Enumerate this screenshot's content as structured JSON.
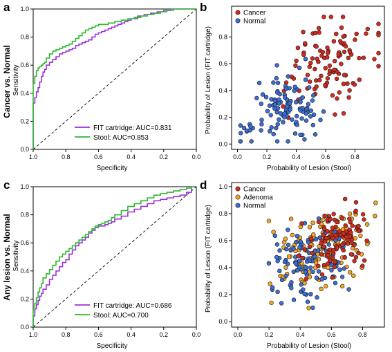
{
  "colors": {
    "fit_curve": "#9b30d9",
    "stool_curve": "#2db82d",
    "cancer": "#d42a1e",
    "adenoma": "#f5a623",
    "normal": "#3b6fd6",
    "point_edge": "#1a1a1a"
  },
  "chart_data": [
    {
      "panel_label": "a",
      "type": "line",
      "side_title": "Cancer vs. Normal",
      "xlabel": "Specificity",
      "ylabel": "Sensitivity",
      "xlim": [
        1.0,
        0.0
      ],
      "ylim": [
        0.0,
        1.0
      ],
      "x_reversed": true,
      "xticks": [
        "1.0",
        "0.8",
        "0.6",
        "0.4",
        "0.2",
        "0.0"
      ],
      "yticks": [
        "0.0",
        "0.2",
        "0.4",
        "0.6",
        "0.8",
        "1.0"
      ],
      "reference_line": "diagonal dashed",
      "legend_position": "bottom-right",
      "series": [
        {
          "name": "FIT cartridge: AUC=0.831",
          "color_key": "fit_curve",
          "x": [
            1.0,
            1.0,
            0.99,
            0.98,
            0.97,
            0.96,
            0.95,
            0.94,
            0.93,
            0.92,
            0.9,
            0.88,
            0.86,
            0.84,
            0.82,
            0.8,
            0.78,
            0.76,
            0.74,
            0.72,
            0.7,
            0.68,
            0.66,
            0.64,
            0.62,
            0.6,
            0.58,
            0.56,
            0.54,
            0.52,
            0.5,
            0.48,
            0.46,
            0.44,
            0.42,
            0.4,
            0.36,
            0.32,
            0.28,
            0.24,
            0.2,
            0.16,
            0.12,
            0.08,
            0.04,
            0.0
          ],
          "y": [
            0.0,
            0.25,
            0.33,
            0.37,
            0.41,
            0.44,
            0.48,
            0.52,
            0.55,
            0.57,
            0.6,
            0.62,
            0.64,
            0.66,
            0.68,
            0.69,
            0.7,
            0.71,
            0.72,
            0.74,
            0.75,
            0.76,
            0.77,
            0.78,
            0.8,
            0.82,
            0.83,
            0.84,
            0.85,
            0.86,
            0.87,
            0.88,
            0.89,
            0.9,
            0.91,
            0.92,
            0.93,
            0.95,
            0.96,
            0.97,
            0.98,
            0.99,
            1.0,
            1.0,
            1.0,
            1.0
          ]
        },
        {
          "name": "Stool: AUC=0.853",
          "color_key": "stool_curve",
          "x": [
            1.0,
            1.0,
            0.99,
            0.98,
            0.97,
            0.96,
            0.95,
            0.94,
            0.93,
            0.92,
            0.9,
            0.88,
            0.86,
            0.84,
            0.82,
            0.8,
            0.78,
            0.76,
            0.74,
            0.72,
            0.7,
            0.68,
            0.66,
            0.64,
            0.62,
            0.6,
            0.58,
            0.56,
            0.54,
            0.52,
            0.5,
            0.46,
            0.42,
            0.38,
            0.34,
            0.3,
            0.26,
            0.22,
            0.18,
            0.14,
            0.1,
            0.06,
            0.02,
            0.0
          ],
          "y": [
            0.0,
            0.37,
            0.47,
            0.52,
            0.56,
            0.58,
            0.59,
            0.6,
            0.61,
            0.62,
            0.65,
            0.68,
            0.7,
            0.71,
            0.72,
            0.73,
            0.74,
            0.75,
            0.77,
            0.79,
            0.81,
            0.83,
            0.85,
            0.86,
            0.87,
            0.88,
            0.89,
            0.89,
            0.89,
            0.9,
            0.9,
            0.91,
            0.92,
            0.93,
            0.94,
            0.95,
            0.96,
            0.97,
            0.98,
            0.99,
            1.0,
            1.0,
            1.0,
            1.0
          ]
        }
      ]
    },
    {
      "panel_label": "b",
      "type": "scatter",
      "xlabel": "Probability of Lesion (Stool)",
      "ylabel": "Probability of Lesion (FIT cartridge)",
      "xlim": [
        0.0,
        1.0
      ],
      "ylim": [
        0.0,
        1.0
      ],
      "xticks": [
        "0.0",
        "0.2",
        "0.4",
        "0.6",
        "0.8"
      ],
      "yticks": [
        "0.0",
        "0.2",
        "0.4",
        "0.6",
        "0.8"
      ],
      "legend_position": "top-left",
      "groups": [
        {
          "name": "Cancer",
          "color_key": "cancer",
          "n": 110,
          "center": [
            0.62,
            0.58
          ],
          "spread": [
            0.16,
            0.17
          ],
          "seed": 11
        },
        {
          "name": "Normal",
          "color_key": "normal",
          "n": 115,
          "center": [
            0.3,
            0.25
          ],
          "spread": [
            0.13,
            0.12
          ],
          "seed": 23
        }
      ]
    },
    {
      "panel_label": "c",
      "type": "line",
      "side_title": "Any lesion vs. Normal",
      "xlabel": "Specificity",
      "ylabel": "Sensitivity",
      "xlim": [
        1.0,
        0.0
      ],
      "ylim": [
        0.0,
        1.0
      ],
      "x_reversed": true,
      "xticks": [
        "1.0",
        "0.8",
        "0.6",
        "0.4",
        "0.2",
        "0.0"
      ],
      "yticks": [
        "0.0",
        "0.2",
        "0.4",
        "0.6",
        "0.8",
        "1.0"
      ],
      "reference_line": "diagonal dashed",
      "legend_position": "bottom-right",
      "series": [
        {
          "name": "FIT cartridge: AUC=0.686",
          "color_key": "fit_curve",
          "x": [
            1.0,
            1.0,
            0.99,
            0.98,
            0.97,
            0.96,
            0.95,
            0.94,
            0.92,
            0.9,
            0.88,
            0.86,
            0.84,
            0.82,
            0.8,
            0.78,
            0.76,
            0.74,
            0.72,
            0.7,
            0.68,
            0.66,
            0.64,
            0.62,
            0.6,
            0.58,
            0.56,
            0.54,
            0.52,
            0.5,
            0.46,
            0.42,
            0.38,
            0.34,
            0.3,
            0.26,
            0.22,
            0.18,
            0.14,
            0.1,
            0.06,
            0.03,
            0.0
          ],
          "y": [
            0.0,
            0.04,
            0.08,
            0.13,
            0.16,
            0.19,
            0.22,
            0.24,
            0.27,
            0.3,
            0.34,
            0.37,
            0.4,
            0.43,
            0.46,
            0.48,
            0.52,
            0.55,
            0.58,
            0.6,
            0.62,
            0.64,
            0.67,
            0.69,
            0.71,
            0.72,
            0.72,
            0.73,
            0.74,
            0.75,
            0.77,
            0.79,
            0.82,
            0.84,
            0.86,
            0.88,
            0.9,
            0.91,
            0.92,
            0.93,
            0.94,
            0.96,
            1.0
          ]
        },
        {
          "name": "Stool: AUC=0.700",
          "color_key": "stool_curve",
          "x": [
            1.0,
            1.0,
            0.99,
            0.98,
            0.97,
            0.96,
            0.95,
            0.94,
            0.92,
            0.9,
            0.88,
            0.86,
            0.84,
            0.82,
            0.8,
            0.78,
            0.76,
            0.74,
            0.72,
            0.7,
            0.68,
            0.66,
            0.64,
            0.62,
            0.6,
            0.58,
            0.56,
            0.54,
            0.52,
            0.5,
            0.46,
            0.42,
            0.38,
            0.34,
            0.3,
            0.26,
            0.22,
            0.18,
            0.14,
            0.1,
            0.06,
            0.03,
            0.0
          ],
          "y": [
            0.0,
            0.06,
            0.12,
            0.17,
            0.21,
            0.25,
            0.28,
            0.31,
            0.35,
            0.38,
            0.41,
            0.44,
            0.47,
            0.5,
            0.52,
            0.54,
            0.56,
            0.58,
            0.6,
            0.62,
            0.64,
            0.66,
            0.68,
            0.7,
            0.72,
            0.73,
            0.74,
            0.75,
            0.76,
            0.78,
            0.8,
            0.83,
            0.86,
            0.88,
            0.9,
            0.92,
            0.94,
            0.95,
            0.96,
            0.97,
            0.98,
            0.99,
            1.0
          ]
        }
      ]
    },
    {
      "panel_label": "d",
      "type": "scatter",
      "xlabel": "Probability of Lesion (Stool)",
      "ylabel": "Probability of Lesion (FIT cartridge)",
      "xlim": [
        0.0,
        1.0
      ],
      "ylim": [
        0.0,
        1.0
      ],
      "xticks": [
        "0.0",
        "0.2",
        "0.4",
        "0.6",
        "0.8"
      ],
      "yticks": [
        "0.0",
        "0.2",
        "0.4",
        "0.6",
        "0.8",
        "1.0"
      ],
      "legend_position": "top-left",
      "groups": [
        {
          "name": "Adenoma",
          "color_key": "adenoma",
          "n": 150,
          "center": [
            0.55,
            0.55
          ],
          "spread": [
            0.14,
            0.14
          ],
          "seed": 31
        },
        {
          "name": "Normal",
          "color_key": "normal",
          "n": 110,
          "center": [
            0.45,
            0.45
          ],
          "spread": [
            0.15,
            0.14
          ],
          "seed": 47
        },
        {
          "name": "Cancer",
          "color_key": "cancer",
          "n": 110,
          "center": [
            0.65,
            0.62
          ],
          "spread": [
            0.11,
            0.11
          ],
          "seed": 59
        }
      ],
      "legend_order": [
        "Cancer",
        "Adenoma",
        "Normal"
      ]
    }
  ]
}
